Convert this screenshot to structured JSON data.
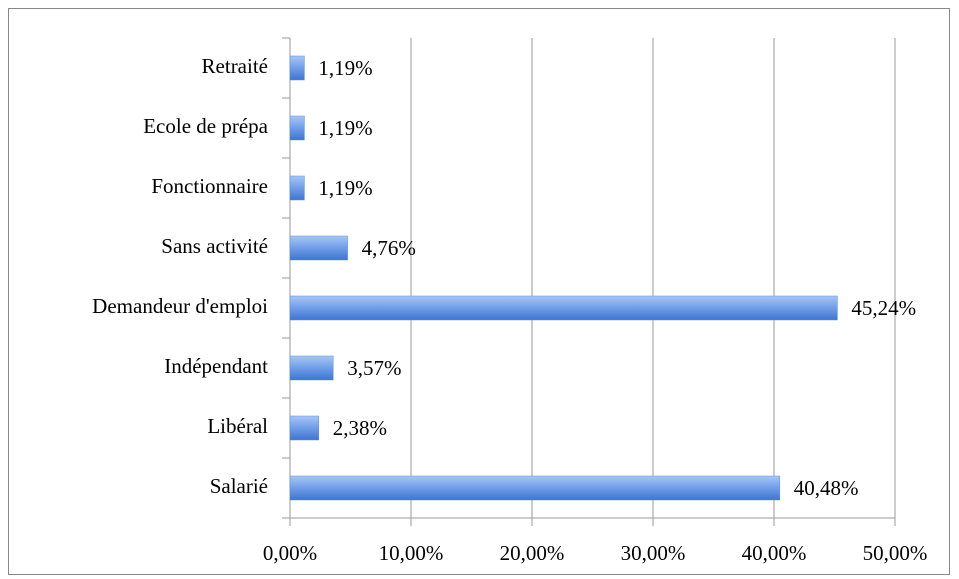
{
  "chart_data": {
    "type": "bar",
    "orientation": "horizontal",
    "categories": [
      "Salarié",
      "Libéral",
      "Indépendant",
      "Demandeur d'emploi",
      "Sans activité",
      "Fonctionnaire",
      "Ecole de prépa",
      "Retraité"
    ],
    "values": [
      40.48,
      2.38,
      3.57,
      45.24,
      4.76,
      1.19,
      1.19,
      1.19
    ],
    "value_labels": [
      "40,48%",
      "2,38%",
      "3,57%",
      "45,24%",
      "4,76%",
      "1,19%",
      "1,19%",
      "1,19%"
    ],
    "color": "#5b8fe0",
    "xlim": [
      0,
      50
    ],
    "xticks": [
      {
        "value": 0,
        "label": "0,00%"
      },
      {
        "value": 10,
        "label": "10,00%"
      },
      {
        "value": 20,
        "label": "20,00%"
      },
      {
        "value": 30,
        "label": "30,00%"
      },
      {
        "value": 40,
        "label": "40,00%"
      },
      {
        "value": 50,
        "label": "50,00%"
      }
    ],
    "grid": true
  }
}
